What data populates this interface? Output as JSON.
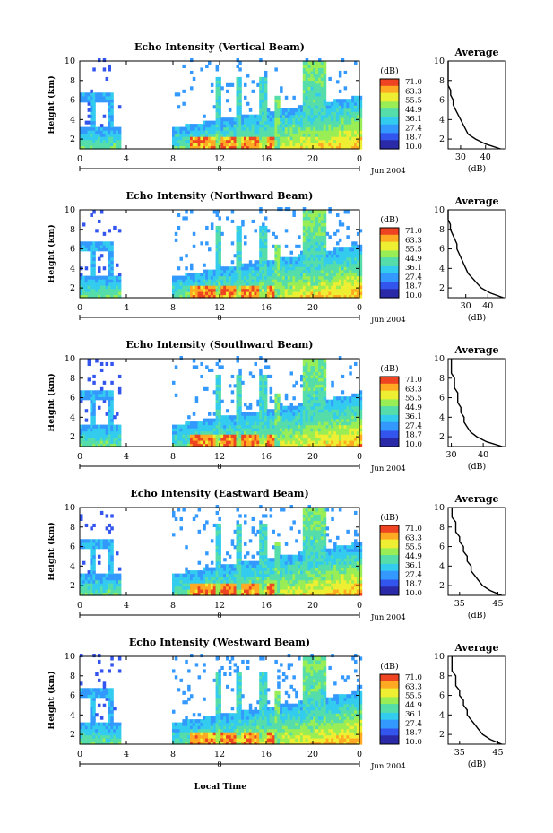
{
  "colors": {
    "colormap": [
      "#2a2aa8",
      "#3355ee",
      "#3399ff",
      "#33ccee",
      "#55ddaa",
      "#99ee55",
      "#eeee33",
      "#ffaa22",
      "#ee4422"
    ],
    "axis": "#000000",
    "background": "#ffffff"
  },
  "x_axis_label": "Local Time",
  "date_label": "Jun 2004",
  "day_label": "8",
  "chart_data": [
    {
      "type": "heatmap",
      "title": "Echo Intensity (Vertical Beam)",
      "ylabel": "Height (km)",
      "xlabel": "Local Time",
      "xlim": [
        0,
        24
      ],
      "ylim": [
        1,
        10
      ],
      "x_ticks": [
        "0",
        "4",
        "8",
        "12",
        "16",
        "20",
        "0"
      ],
      "y_ticks": [
        "2",
        "4",
        "6",
        "8",
        "10"
      ],
      "colorbar": {
        "unit": "(dB)",
        "ticks": [
          "71.0",
          "63.3",
          "55.5",
          "44.9",
          "36.1",
          "27.4",
          "18.7",
          "10.0"
        ]
      },
      "profile": {
        "title": "Average",
        "xlabel": "(dB)",
        "x_ticks": [
          "30",
          "40"
        ],
        "xlim": [
          25,
          48
        ],
        "height": [
          1,
          1.5,
          2,
          2.5,
          3,
          3.5,
          4,
          4.5,
          5,
          5.5,
          6,
          6.5,
          7,
          7.5,
          8,
          8.5,
          9,
          9.5,
          10
        ],
        "value": [
          46,
          40,
          36,
          33,
          32,
          31,
          30,
          29,
          28,
          27,
          27,
          26,
          26,
          25,
          25,
          25,
          25,
          25,
          25
        ]
      }
    },
    {
      "type": "heatmap",
      "title": "Echo Intensity (Northward Beam)",
      "ylabel": "Height (km)",
      "xlabel": "Local Time",
      "xlim": [
        0,
        24
      ],
      "ylim": [
        1,
        10
      ],
      "x_ticks": [
        "0",
        "4",
        "8",
        "12",
        "16",
        "20",
        "0"
      ],
      "y_ticks": [
        "2",
        "4",
        "6",
        "8",
        "10"
      ],
      "colorbar": {
        "unit": "(dB)",
        "ticks": [
          "71.0",
          "63.3",
          "55.5",
          "44.9",
          "36.1",
          "27.4",
          "18.7",
          "10.0"
        ]
      },
      "profile": {
        "title": "Average",
        "xlabel": "(dB)",
        "x_ticks": [
          "30",
          "40"
        ],
        "xlim": [
          22,
          48
        ],
        "height": [
          1,
          1.5,
          2,
          2.5,
          3,
          3.5,
          4,
          4.5,
          5,
          5.5,
          6,
          6.5,
          7,
          7.5,
          8,
          8.5,
          9,
          9.5,
          10
        ],
        "value": [
          47,
          41,
          37,
          35,
          33,
          31,
          30,
          29,
          28,
          27,
          26,
          26,
          25,
          24,
          23,
          23,
          22,
          22,
          22
        ]
      }
    },
    {
      "type": "heatmap",
      "title": "Echo Intensity (Southward Beam)",
      "ylabel": "Height (km)",
      "xlabel": "Local Time",
      "xlim": [
        0,
        24
      ],
      "ylim": [
        1,
        10
      ],
      "x_ticks": [
        "0",
        "4",
        "8",
        "12",
        "16",
        "20",
        "0"
      ],
      "y_ticks": [
        "2",
        "4",
        "6",
        "8",
        "10"
      ],
      "colorbar": {
        "unit": "(dB)",
        "ticks": [
          "71.0",
          "63.3",
          "55.5",
          "44.9",
          "36.1",
          "27.4",
          "18.7",
          "10.0"
        ]
      },
      "profile": {
        "title": "Average",
        "xlabel": "(dB)",
        "x_ticks": [
          "30",
          "40"
        ],
        "xlim": [
          29,
          47
        ],
        "height": [
          1,
          1.5,
          2,
          2.5,
          3,
          3.5,
          4,
          4.5,
          5,
          5.5,
          6,
          6.5,
          7,
          7.5,
          8,
          8.5,
          9,
          9.5,
          10
        ],
        "value": [
          46,
          41,
          38,
          36,
          35,
          34,
          34,
          33,
          33,
          32,
          32,
          32,
          31,
          31,
          31,
          30,
          30,
          30,
          30
        ]
      }
    },
    {
      "type": "heatmap",
      "title": "Echo Intensity (Eastward Beam)",
      "ylabel": "Height (km)",
      "xlabel": "Local Time",
      "xlim": [
        0,
        24
      ],
      "ylim": [
        1,
        10
      ],
      "x_ticks": [
        "0",
        "4",
        "8",
        "12",
        "16",
        "20",
        "0"
      ],
      "y_ticks": [
        "2",
        "4",
        "6",
        "8",
        "10"
      ],
      "colorbar": {
        "unit": "(dB)",
        "ticks": [
          "71.0",
          "63.3",
          "55.5",
          "44.9",
          "36.1",
          "27.4",
          "18.7",
          "10.0"
        ]
      },
      "profile": {
        "title": "Average",
        "xlabel": "(dB)",
        "x_ticks": [
          "35",
          "45"
        ],
        "xlim": [
          32,
          47
        ],
        "height": [
          1,
          1.5,
          2,
          2.5,
          3,
          3.5,
          4,
          4.5,
          5,
          5.5,
          6,
          6.5,
          7,
          7.5,
          8,
          8.5,
          9,
          9.5,
          10
        ],
        "value": [
          46,
          43,
          41,
          40,
          39,
          38,
          38,
          37,
          37,
          36,
          36,
          35,
          35,
          34,
          34,
          34,
          33,
          33,
          33
        ]
      }
    },
    {
      "type": "heatmap",
      "title": "Echo Intensity (Westward Beam)",
      "ylabel": "Height (km)",
      "xlabel": "Local Time",
      "xlim": [
        0,
        24
      ],
      "ylim": [
        1,
        10
      ],
      "x_ticks": [
        "0",
        "4",
        "8",
        "12",
        "16",
        "20",
        "0"
      ],
      "y_ticks": [
        "2",
        "4",
        "6",
        "8",
        "10"
      ],
      "colorbar": {
        "unit": "(dB)",
        "ticks": [
          "71.0",
          "63.3",
          "55.5",
          "44.9",
          "36.1",
          "27.4",
          "18.7",
          "10.0"
        ]
      },
      "profile": {
        "title": "Average",
        "xlabel": "(dB)",
        "x_ticks": [
          "35",
          "45"
        ],
        "xlim": [
          32,
          47
        ],
        "height": [
          1,
          1.5,
          2,
          2.5,
          3,
          3.5,
          4,
          4.5,
          5,
          5.5,
          6,
          6.5,
          7,
          7.5,
          8,
          8.5,
          9,
          9.5,
          10
        ],
        "value": [
          46,
          43,
          41,
          40,
          39,
          38,
          37,
          37,
          36,
          36,
          35,
          35,
          34,
          34,
          34,
          33,
          33,
          33,
          33
        ]
      }
    }
  ]
}
